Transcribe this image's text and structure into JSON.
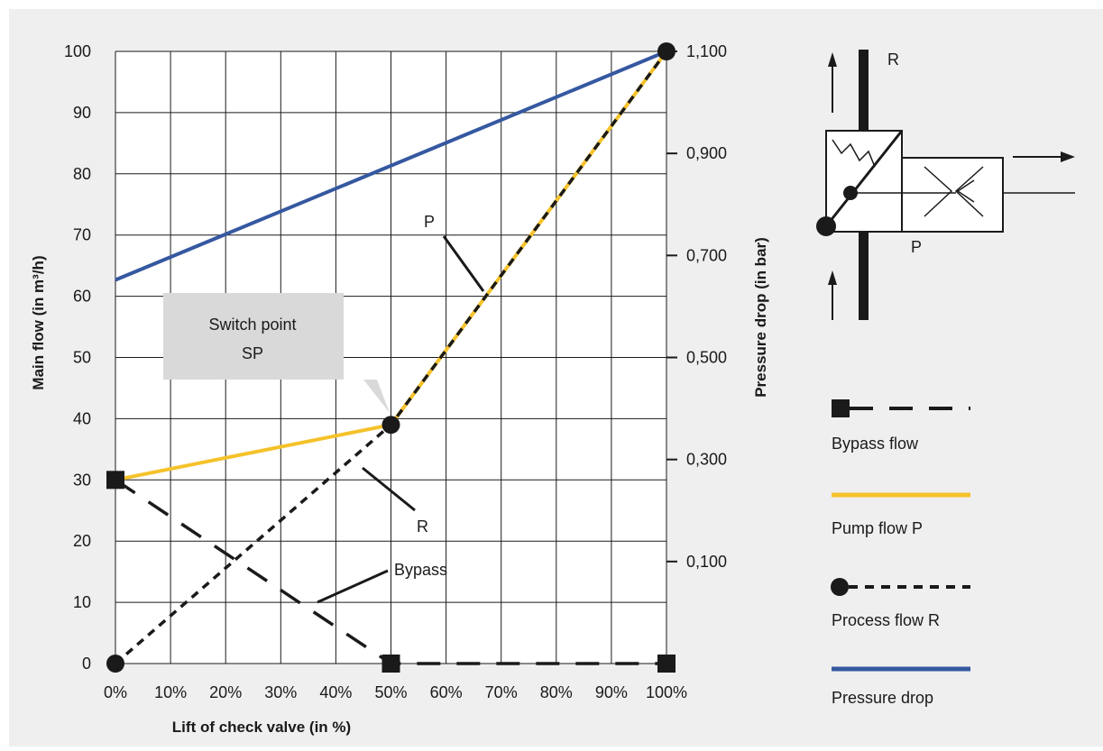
{
  "chart_data": {
    "type": "line",
    "xlabel": "Lift of check valve (in %)",
    "ylabel": "Main flow (in m³/h)",
    "y2label": "Pressure drop (in bar)",
    "x_ticks": [
      "0%",
      "10%",
      "20%",
      "30%",
      "40%",
      "50%",
      "60%",
      "70%",
      "80%",
      "90%",
      "100%"
    ],
    "xlim": [
      0,
      100
    ],
    "ylim": [
      0,
      100
    ],
    "y_ticks": [
      0,
      10,
      20,
      30,
      40,
      50,
      60,
      70,
      80,
      90,
      100
    ],
    "y2_ticks": [
      {
        "label": "0,100",
        "value": 0.1
      },
      {
        "label": "0,300",
        "value": 0.3
      },
      {
        "label": "0,500",
        "value": 0.5
      },
      {
        "label": "0,700",
        "value": 0.7
      },
      {
        "label": "0,900",
        "value": 0.9
      },
      {
        "label": "1,100",
        "value": 1.1
      }
    ],
    "y2lim": [
      -0.1,
      1.1
    ],
    "grid": true,
    "series": [
      {
        "name": "Bypass flow",
        "axis": "left",
        "color": "#1a1a1a",
        "style": "dashed",
        "marker": "square",
        "x": [
          0,
          50,
          100
        ],
        "y": [
          30,
          0,
          0
        ]
      },
      {
        "name": "Pump flow P",
        "axis": "left",
        "color": "#f5c22b",
        "style": "solid",
        "marker": "none",
        "x": [
          0,
          50,
          100
        ],
        "y": [
          30,
          39,
          100
        ]
      },
      {
        "name": "Process flow R",
        "axis": "left",
        "color": "#1a1a1a",
        "style": "dotted",
        "marker": "circle",
        "x": [
          0,
          50,
          100
        ],
        "y": [
          0,
          39,
          100
        ]
      },
      {
        "name": "Pressure drop",
        "axis": "right",
        "color": "#3558a0",
        "style": "solid",
        "marker": "none",
        "x": [
          0,
          100
        ],
        "y": [
          0.652,
          1.1
        ]
      }
    ],
    "annotations": [
      {
        "text": "P",
        "x": 57,
        "y": 70
      },
      {
        "text": "R",
        "x": 55,
        "y": 23
      },
      {
        "text": "Bypass",
        "x": 53,
        "y": 15
      }
    ],
    "callout": {
      "line1": "Switch point",
      "line2": "SP"
    },
    "schematic_labels": {
      "r": "R",
      "p": "P"
    },
    "legend_placement": "right",
    "colors": {
      "background": "#efeff0",
      "grid": "#1a1a1a",
      "callout": "#d9d9d9",
      "pump": "#f5c22b",
      "pressure": "#3558a0",
      "black": "#1a1a1a"
    }
  }
}
